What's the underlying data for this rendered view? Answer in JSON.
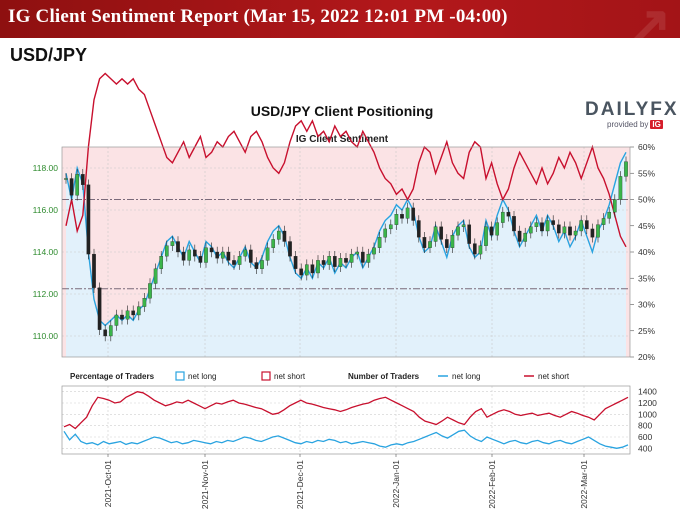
{
  "header": {
    "title": "IG Client Sentiment Report (Mar 15, 2022 12:01 PM -04:00)",
    "pair": "USD/JPY"
  },
  "logo": {
    "brand_a": "DAILY",
    "brand_b": "FX",
    "provided_by": "provided by",
    "ig": "IG"
  },
  "chart_data": [
    {
      "type": "candlestick",
      "title": "USD/JPY Client Positioning",
      "subtitle": "IG Client Sentiment",
      "y_left_ticks": [
        "110.00",
        "112.00",
        "114.00",
        "116.00",
        "118.00"
      ],
      "y_right_ticks": [
        "20%",
        "25%",
        "30%",
        "35%",
        "40%",
        "45%",
        "50%",
        "55%",
        "60%"
      ],
      "ylim_price": [
        109.0,
        119.0
      ],
      "ylim_pct": [
        20,
        60
      ],
      "grid": true,
      "reference_lines": [
        116.5,
        112.25
      ],
      "x_ticks": [
        "2021-Oct-01",
        "2021-Nov-01",
        "2021-Dec-01",
        "2022-Jan-01",
        "2022-Feb-01",
        "2022-Mar-01"
      ],
      "price_close": [
        117.5,
        116.7,
        117.7,
        117.2,
        113.9,
        112.3,
        110.3,
        110.0,
        110.5,
        111.0,
        110.8,
        111.2,
        111.0,
        111.4,
        111.8,
        112.5,
        113.2,
        113.8,
        114.3,
        114.5,
        114.0,
        113.6,
        114.1,
        113.8,
        113.5,
        114.2,
        114.0,
        113.7,
        114.0,
        113.6,
        113.4,
        113.8,
        114.1,
        113.5,
        113.2,
        113.6,
        114.2,
        114.6,
        115.0,
        114.5,
        113.8,
        113.2,
        112.9,
        113.4,
        113.0,
        113.6,
        113.4,
        113.8,
        113.3,
        113.7,
        113.5,
        113.9,
        114.0,
        113.5,
        113.9,
        114.2,
        114.7,
        115.1,
        115.3,
        115.8,
        115.6,
        116.1,
        115.5,
        114.7,
        114.2,
        114.5,
        115.2,
        114.6,
        114.2,
        114.8,
        115.2,
        115.3,
        114.4,
        113.9,
        114.3,
        115.2,
        114.8,
        115.4,
        115.9,
        115.7,
        115.0,
        114.5,
        114.9,
        115.2,
        115.4,
        115.0,
        115.5,
        115.3,
        114.9,
        115.2,
        114.8,
        115.0,
        115.5,
        115.1,
        114.7,
        115.3,
        115.6,
        115.9,
        116.5,
        117.6,
        118.3
      ],
      "pct_long": [
        55,
        50,
        56,
        53,
        40,
        31,
        27,
        26,
        27,
        28,
        27,
        28,
        27,
        29,
        30,
        33,
        36,
        39,
        42,
        43,
        41,
        39,
        42,
        40,
        38,
        42,
        41,
        39,
        40,
        38,
        37,
        39,
        41,
        38,
        37,
        39,
        42,
        44,
        45,
        43,
        39,
        36,
        35,
        37,
        35,
        38,
        37,
        39,
        36,
        38,
        37,
        39,
        40,
        37,
        39,
        41,
        44,
        46,
        47,
        49,
        48,
        50,
        48,
        43,
        40,
        41,
        45,
        42,
        39,
        43,
        45,
        46,
        41,
        39,
        40,
        46,
        43,
        47,
        50,
        48,
        44,
        41,
        43,
        45,
        47,
        44,
        47,
        45,
        42,
        44,
        41,
        43,
        46,
        43,
        40,
        44,
        46,
        49,
        53,
        57,
        59
      ],
      "pct_short": [
        45,
        50,
        44,
        47,
        60,
        69,
        73,
        74,
        73,
        72,
        73,
        72,
        73,
        71,
        70,
        67,
        64,
        61,
        58,
        57,
        59,
        61,
        58,
        60,
        62,
        58,
        59,
        61,
        60,
        62,
        63,
        61,
        59,
        62,
        63,
        61,
        58,
        56,
        55,
        57,
        61,
        64,
        65,
        63,
        65,
        62,
        63,
        61,
        64,
        62,
        63,
        61,
        60,
        63,
        61,
        59,
        56,
        54,
        53,
        51,
        52,
        50,
        52,
        57,
        60,
        59,
        55,
        58,
        61,
        57,
        55,
        54,
        59,
        61,
        60,
        54,
        57,
        53,
        50,
        52,
        56,
        59,
        57,
        55,
        53,
        56,
        53,
        55,
        58,
        56,
        59,
        57,
        54,
        57,
        60,
        56,
        54,
        51,
        47,
        43,
        41
      ],
      "legend": "below"
    },
    {
      "type": "line",
      "x_ticks": [
        "2021-Oct-01",
        "2021-Nov-01",
        "2021-Dec-01",
        "2022-Jan-01",
        "2022-Feb-01",
        "2022-Mar-01"
      ],
      "y_ticks": [
        "400",
        "600",
        "800",
        "1000",
        "1200",
        "1400"
      ],
      "ylim": [
        300,
        1500
      ],
      "grid": true,
      "legend": {
        "pct_label": "Percentage of Traders",
        "pct_long": "net long",
        "pct_short": "net short",
        "num_label": "Number of Traders",
        "num_long": "net long",
        "num_short": "net short"
      },
      "net_long_count": [
        700,
        550,
        650,
        520,
        480,
        500,
        460,
        520,
        480,
        500,
        520,
        470,
        500,
        480,
        520,
        560,
        600,
        580,
        540,
        500,
        520,
        480,
        500,
        540,
        520,
        500,
        480,
        520,
        500,
        540,
        520,
        560,
        600,
        580,
        540,
        520,
        560,
        600,
        620,
        580,
        540,
        500,
        480,
        520,
        500,
        540,
        520,
        560,
        540,
        500,
        520,
        480,
        500,
        520,
        500,
        480,
        440,
        420,
        460,
        480,
        460,
        500,
        520,
        560,
        600,
        640,
        680,
        620,
        580,
        640,
        700,
        720,
        620,
        560,
        520,
        600,
        560,
        520,
        480,
        520,
        540,
        500,
        480,
        520,
        540,
        500,
        480,
        520,
        540,
        500,
        480,
        520,
        560,
        600,
        540,
        480,
        440,
        420,
        400,
        420,
        460
      ],
      "net_short_count": [
        780,
        820,
        750,
        850,
        950,
        1150,
        1300,
        1280,
        1250,
        1200,
        1220,
        1300,
        1350,
        1400,
        1380,
        1320,
        1250,
        1200,
        1150,
        1180,
        1220,
        1200,
        1250,
        1200,
        1150,
        1100,
        1150,
        1200,
        1180,
        1220,
        1250,
        1200,
        1180,
        1150,
        1120,
        1100,
        1050,
        1000,
        1020,
        1080,
        1150,
        1200,
        1250,
        1200,
        1180,
        1150,
        1120,
        1100,
        1080,
        1050,
        1080,
        1120,
        1150,
        1180,
        1200,
        1250,
        1280,
        1300,
        1250,
        1200,
        1150,
        1100,
        1050,
        950,
        880,
        850,
        820,
        880,
        950,
        900,
        850,
        820,
        950,
        1050,
        1100,
        950,
        1000,
        1050,
        1080,
        1050,
        1000,
        980,
        1000,
        1020,
        980,
        1000,
        1020,
        980,
        950,
        1000,
        1050,
        1020,
        980,
        950,
        900,
        1000,
        1100,
        1150,
        1200,
        1250,
        1300
      ]
    }
  ]
}
